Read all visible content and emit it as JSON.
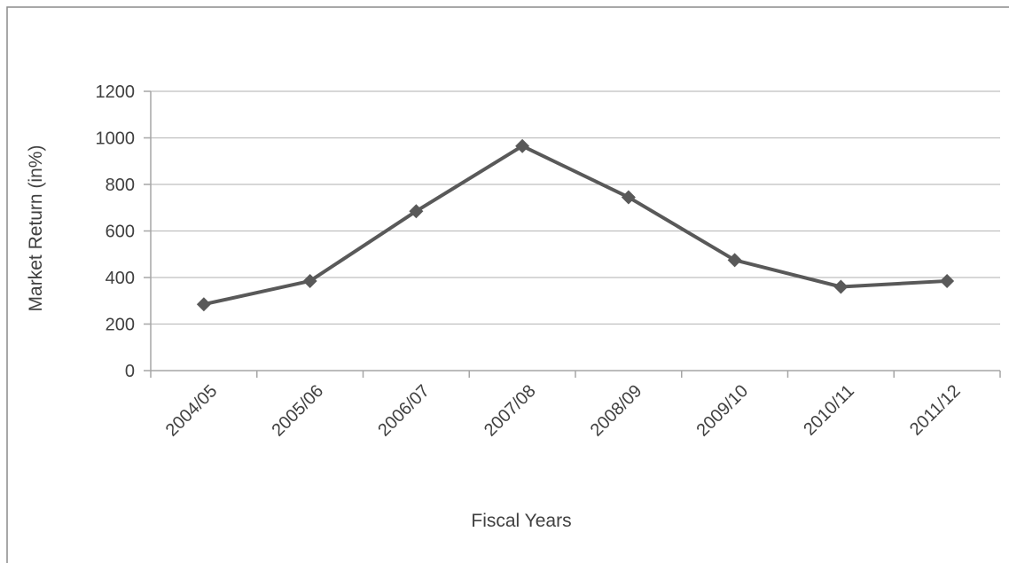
{
  "chart_data": {
    "type": "line",
    "title": "",
    "xlabel": "Fiscal Years",
    "ylabel": "Market Return (in%)",
    "categories": [
      "2004/05",
      "2005/06",
      "2006/07",
      "2007/08",
      "2008/09",
      "2009/10",
      "2010/11",
      "2011/12"
    ],
    "series": [
      {
        "values": [
          285,
          385,
          685,
          965,
          745,
          475,
          360,
          385
        ]
      }
    ],
    "ylim": [
      0,
      1200
    ],
    "yticks": [
      "0",
      "200",
      "400",
      "600",
      "800",
      "1000",
      "1200"
    ],
    "grid": true,
    "legend": "none",
    "marker": "diamond",
    "colors": {
      "line": "#595959",
      "marker": "#595959"
    }
  }
}
